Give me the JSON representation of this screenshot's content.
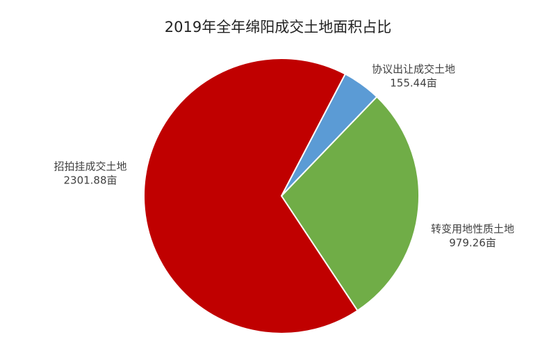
{
  "chart_data": {
    "type": "pie",
    "title": "2019年全年绵阳成交土地面积占比",
    "categories": [
      "协议出让成交土地",
      "转变用地性质土地",
      "招拍挂成交土地"
    ],
    "values": [
      155.44,
      979.26,
      2301.88
    ],
    "value_labels": [
      "155.44亩",
      "979.26亩",
      "2301.88亩"
    ],
    "colors": [
      "#5b9bd5",
      "#70ad47",
      "#c00000"
    ]
  }
}
